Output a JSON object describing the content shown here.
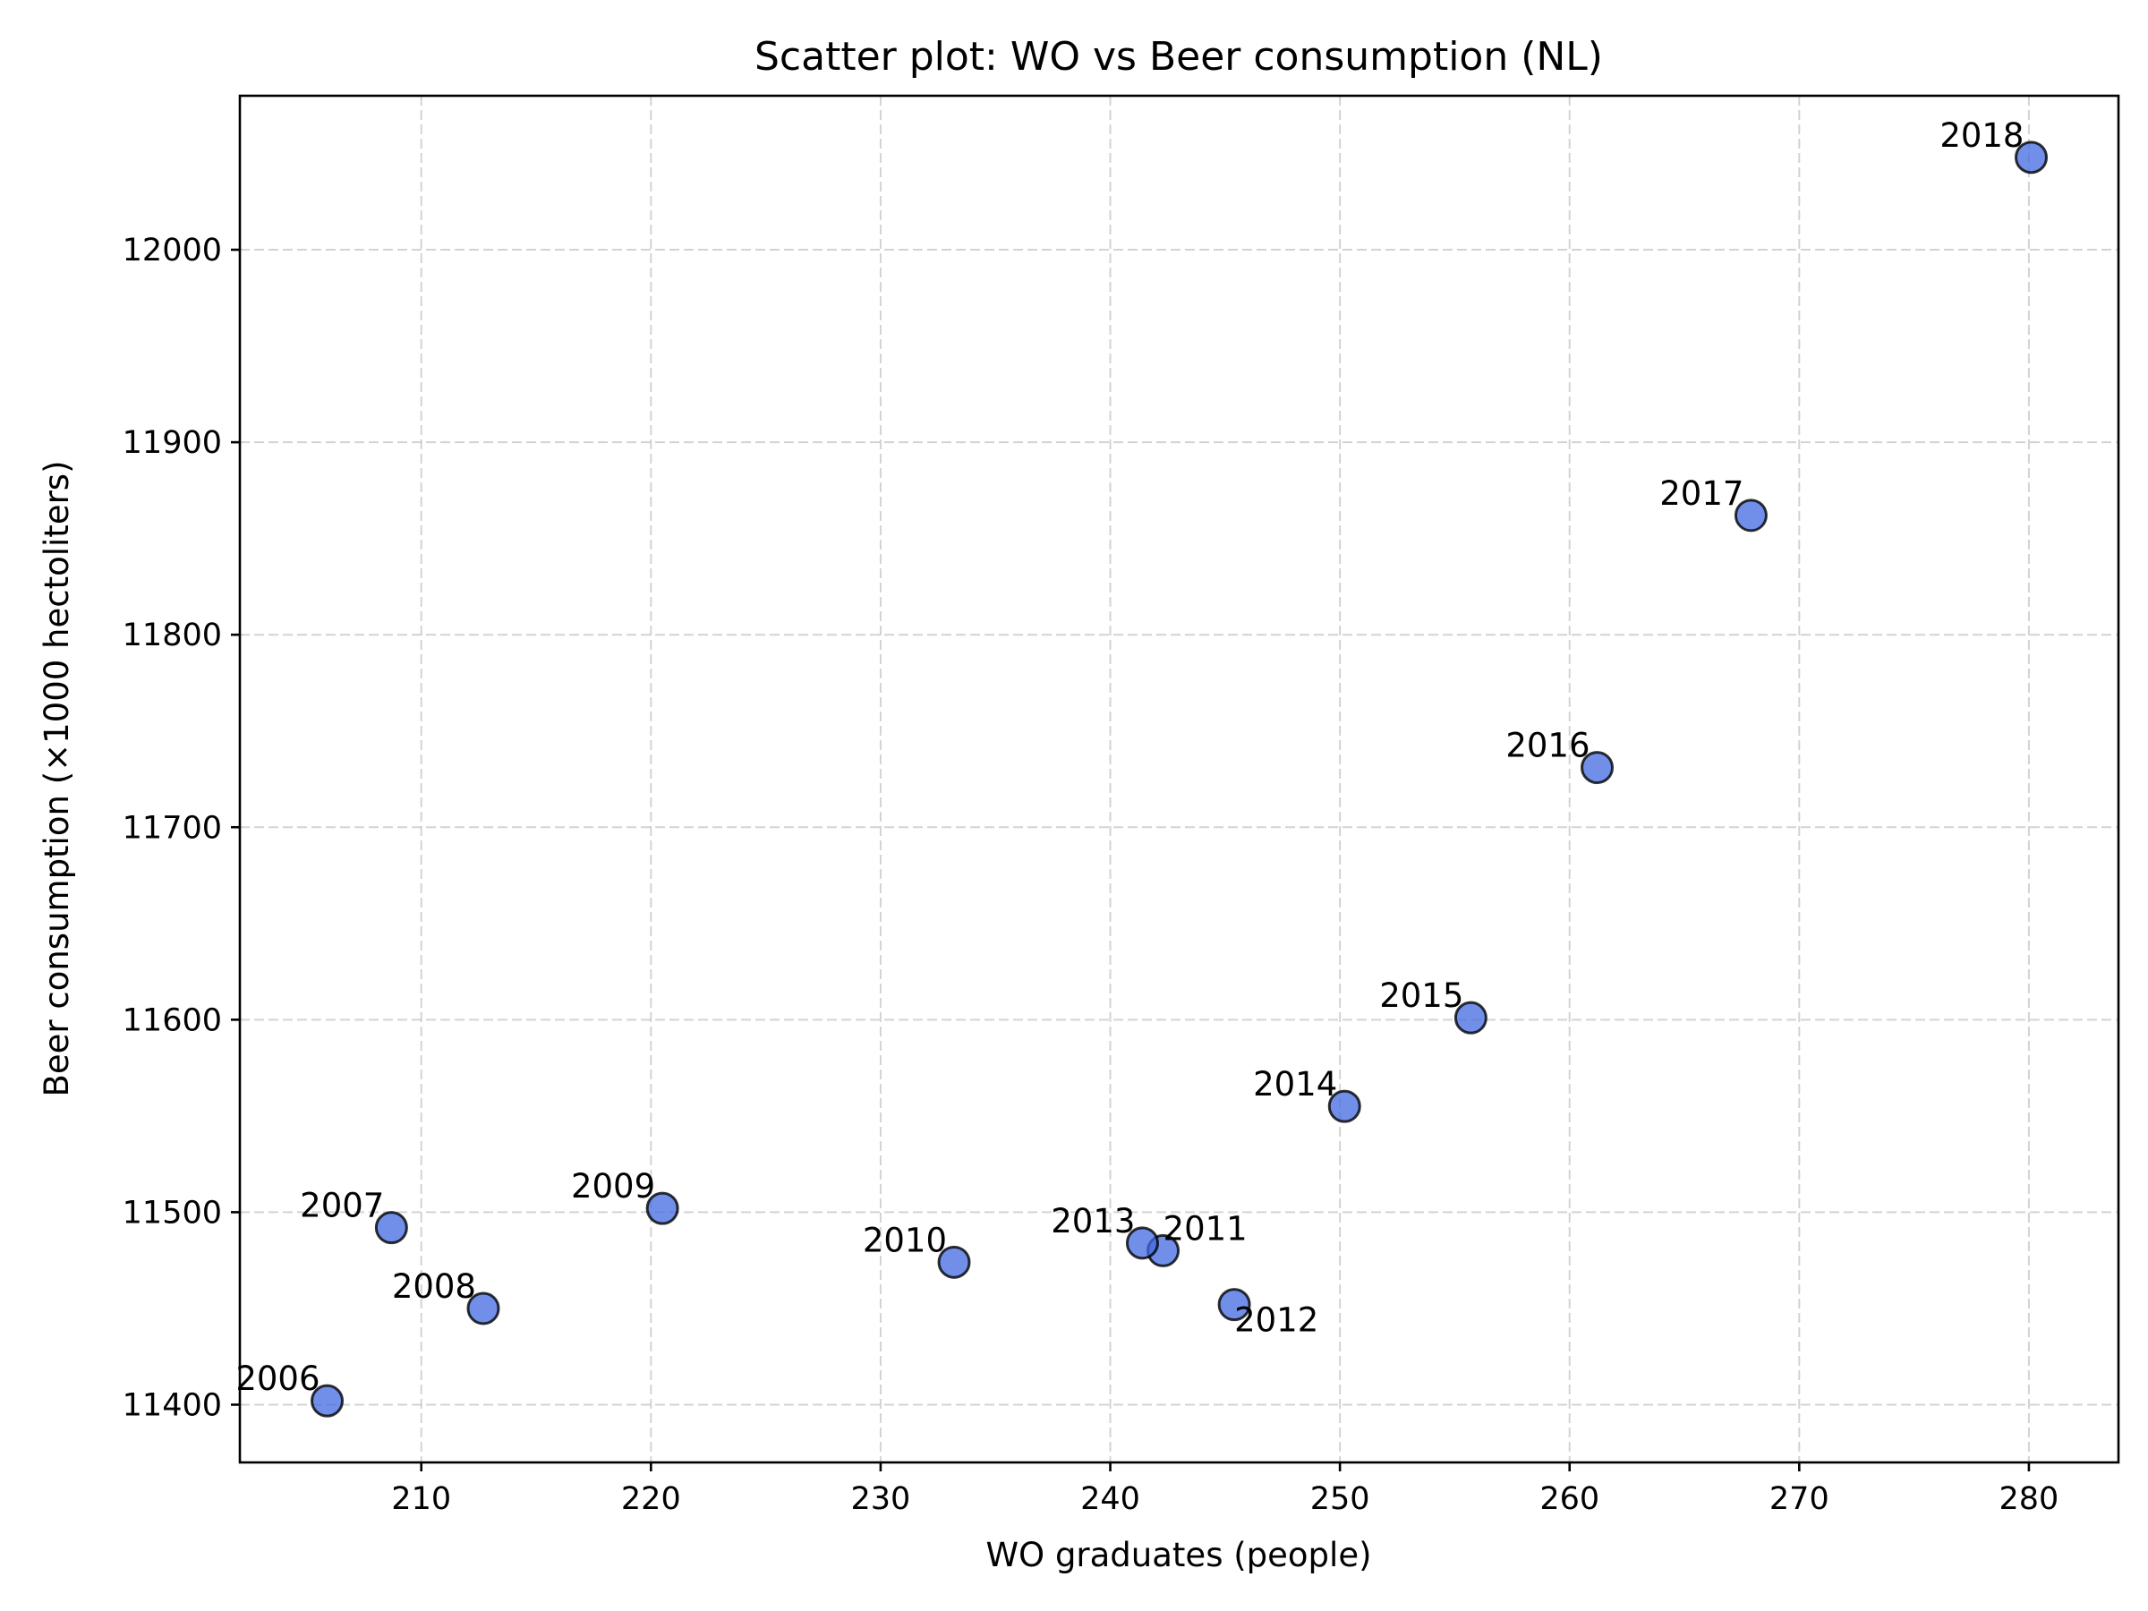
{
  "chart_data": {
    "type": "scatter",
    "title": "Scatter plot: WO vs Beer consumption (NL)",
    "xlabel": "WO graduates (people)",
    "ylabel": "Beer consumption (×1000 hectoliters)",
    "xlim": [
      202.1,
      283.9
    ],
    "ylim": [
      11370,
      12080
    ],
    "xticks": [
      210,
      220,
      230,
      240,
      250,
      260,
      270,
      280
    ],
    "yticks": [
      11400,
      11500,
      11600,
      11700,
      11800,
      11900,
      12000
    ],
    "grid": true,
    "marker_color": "#4169e1",
    "points": [
      {
        "label": "2006",
        "x": 205.9,
        "y": 11402
      },
      {
        "label": "2007",
        "x": 208.7,
        "y": 11492
      },
      {
        "label": "2008",
        "x": 212.7,
        "y": 11450
      },
      {
        "label": "2009",
        "x": 220.5,
        "y": 11502
      },
      {
        "label": "2010",
        "x": 233.2,
        "y": 11474
      },
      {
        "label": "2011",
        "x": 242.3,
        "y": 11480
      },
      {
        "label": "2012",
        "x": 245.4,
        "y": 11452
      },
      {
        "label": "2013",
        "x": 241.4,
        "y": 11484
      },
      {
        "label": "2014",
        "x": 250.2,
        "y": 11555
      },
      {
        "label": "2015",
        "x": 255.7,
        "y": 11601
      },
      {
        "label": "2016",
        "x": 261.2,
        "y": 11731
      },
      {
        "label": "2017",
        "x": 267.9,
        "y": 11862
      },
      {
        "label": "2018",
        "x": 280.1,
        "y": 12048
      }
    ]
  }
}
